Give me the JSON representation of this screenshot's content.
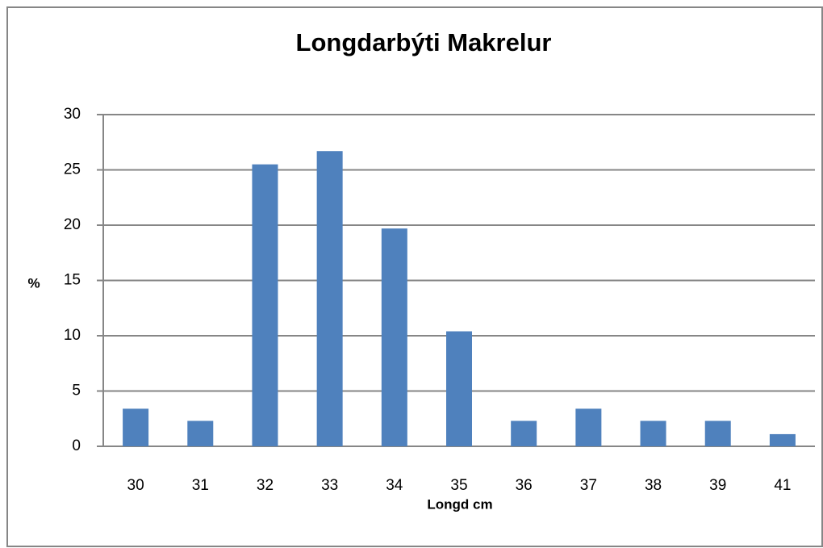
{
  "chart_data": {
    "type": "bar",
    "title": "Longdarbýti Makrelur",
    "x_label": "Longd cm",
    "y_label": "%",
    "categories": [
      "30",
      "31",
      "32",
      "33",
      "34",
      "35",
      "36",
      "37",
      "38",
      "39",
      "41"
    ],
    "values": [
      3.4,
      2.3,
      25.5,
      26.7,
      19.7,
      10.4,
      2.3,
      3.4,
      2.3,
      2.3,
      1.1
    ],
    "color": "#4f81bd",
    "ylim": [
      0,
      30
    ],
    "yticks": [
      0,
      5,
      10,
      15,
      20,
      25,
      30
    ],
    "grid": true
  }
}
